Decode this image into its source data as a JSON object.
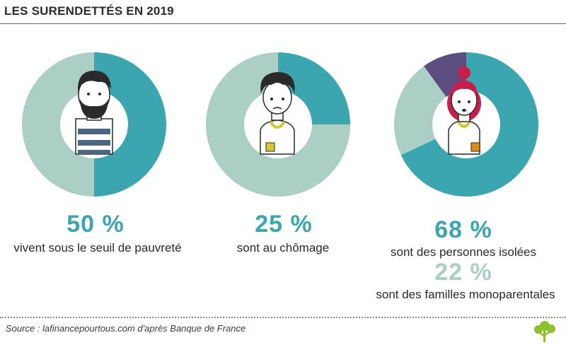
{
  "title": "LES SURENDETTÉS EN 2019",
  "colors": {
    "teal": "#3ba6b0",
    "light": "#abcfc5",
    "purple": "#5b4d7f",
    "text": "#2a2a2a"
  },
  "chart_data": [
    {
      "type": "pie",
      "values": [
        50,
        50
      ],
      "highlight": "50 %",
      "caption": "vivent sous le seuil de pauvreté"
    },
    {
      "type": "pie",
      "values": [
        25,
        75
      ],
      "highlight": "25 %",
      "caption": "sont au chômage"
    },
    {
      "type": "pie",
      "values": [
        68,
        22,
        10
      ],
      "highlight": "68 %",
      "caption": "sont des personnes isolées",
      "highlight2": "22 %",
      "caption2": "sont des familles monoparentales"
    }
  ],
  "source": "Source : lafinancepourtous.com d'après Banque de France",
  "logo_icon": "tree-icon"
}
